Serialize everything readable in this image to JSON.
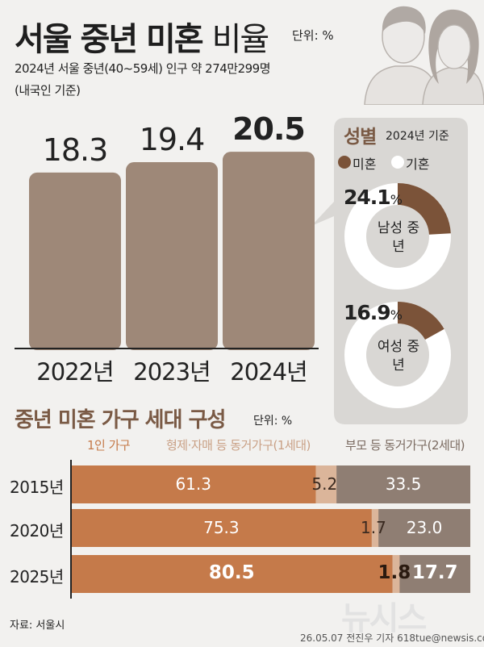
{
  "header": {
    "title_bold": "서울 중년 미혼",
    "title_light": "비율",
    "unit": "단위: %",
    "subtitle": "2024년 서울 중년(40~59세) 인구 약 274만299명",
    "subtitle2": "(내국인 기준)"
  },
  "gender": {
    "title": "성별",
    "basis": "2024년 기준",
    "legend_unmarried": "미혼",
    "legend_married": "기혼",
    "male_label": "남성 중년",
    "female_label": "여성 중년",
    "percent_sign": "%"
  },
  "household": {
    "title": "중년 미혼 가구 세대 구성",
    "unit": "단위: %"
  },
  "source": "자료: 서울시",
  "credit": "26.05.07 전진우 기자 618tue@newsis.com",
  "watermark": "뉴시스",
  "colors": {
    "bar": "#9e8878",
    "brown": "#7b5339",
    "orange": "#c57a4a",
    "light": "#dbb59a",
    "gray_brown": "#8f7e73",
    "panel": "#d9d7d4",
    "orange_text": "#c57a4a"
  },
  "chart_data": [
    {
      "type": "bar",
      "categories": [
        "2022년",
        "2023년",
        "2024년"
      ],
      "values": [
        18.3,
        19.4,
        20.5
      ],
      "value_labels": [
        "18.3",
        "19.4",
        "20.5"
      ],
      "bold_index": 2
    },
    {
      "type": "pie",
      "series": [
        {
          "name": "남성 중년",
          "unmarried": 24.1,
          "label": "24.1"
        },
        {
          "name": "여성 중년",
          "unmarried": 16.9,
          "label": "16.9"
        }
      ]
    },
    {
      "type": "bar",
      "stacked": true,
      "orientation": "horizontal",
      "categories": [
        "2015년",
        "2020년",
        "2025년"
      ],
      "series": [
        {
          "name": "1인 가구",
          "values": [
            61.3,
            75.3,
            80.5
          ],
          "labels": [
            "61.3",
            "75.3",
            "80.5"
          ]
        },
        {
          "name": "형제·자매 등 동거가구(1세대)",
          "values": [
            5.2,
            1.7,
            1.8
          ],
          "labels": [
            "5.2",
            "1.7",
            "1.8"
          ]
        },
        {
          "name": "부모 등 동거가구(2세대)",
          "values": [
            33.5,
            23.0,
            17.7
          ],
          "labels": [
            "33.5",
            "23.0",
            "17.7"
          ]
        }
      ],
      "bold_row": 2
    }
  ]
}
